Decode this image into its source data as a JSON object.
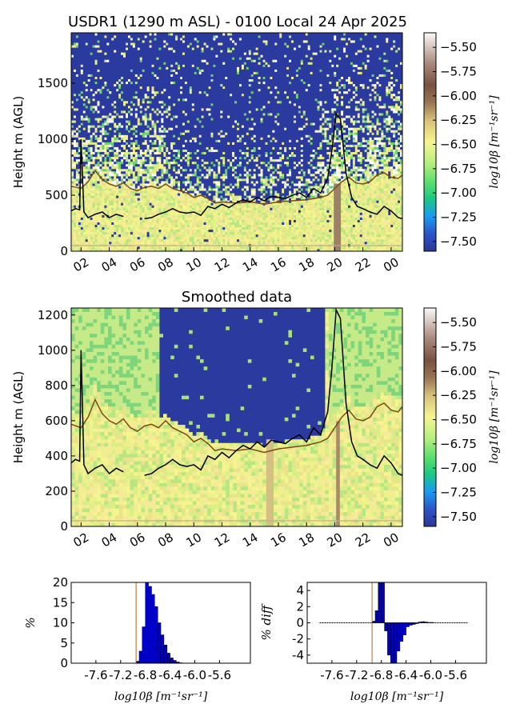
{
  "figure_title": "USDR1 (1290 m ASL) - 0100 Local 24 Apr 2025",
  "colors": {
    "low": "#2b3a9e",
    "mid": "#f3f18c",
    "high": "#ffffff",
    "blh_line": "#000000",
    "cloud_line": "#7a4a14",
    "hist_bar": "#0000c8"
  },
  "chart_data": [
    {
      "type": "heatmap",
      "title": "",
      "ylabel": "Height m (AGL)",
      "xticks": [
        "02",
        "04",
        "06",
        "08",
        "10",
        "12",
        "14",
        "16",
        "18",
        "20",
        "22",
        "00"
      ],
      "xlim": [
        1.3,
        24.8
      ],
      "ylim": [
        0,
        1950
      ],
      "yticks": [
        0,
        500,
        1000,
        1500
      ],
      "colorbar": {
        "label": "log10β [m⁻¹sr⁻¹]",
        "min": -7.6,
        "max": -5.35,
        "ticks": [
          "-5.50",
          "-5.75",
          "-6.00",
          "-6.25",
          "-6.50",
          "-6.75",
          "-7.00",
          "-7.25",
          "-7.50"
        ]
      },
      "mixing_layer_height": {
        "x": [
          1.3,
          1.6,
          1.9,
          2.0,
          2.2,
          2.5,
          3.0,
          3.5,
          4.0,
          4.5,
          5.0,
          5.5,
          6.0,
          6.5,
          7.0,
          7.5,
          8.0,
          8.5,
          9.0,
          9.5,
          10.0,
          10.5,
          11.0,
          11.5,
          12.0,
          12.5,
          13.0,
          13.5,
          14.0,
          14.5,
          15.0,
          15.5,
          16.0,
          16.5,
          17.0,
          17.5,
          18.0,
          18.5,
          19.0,
          19.5,
          19.8,
          20.1,
          20.4,
          20.8,
          21.2,
          21.6,
          22.0,
          22.5,
          23.0,
          23.5,
          24.0,
          24.5,
          24.8
        ],
        "y": [
          360,
          380,
          370,
          1000,
          350,
          300,
          330,
          350,
          300,
          330,
          310,
          null,
          null,
          290,
          300,
          330,
          350,
          380,
          350,
          340,
          350,
          320,
          400,
          380,
          420,
          390,
          430,
          460,
          440,
          480,
          450,
          490,
          480,
          470,
          500,
          520,
          480,
          560,
          520,
          650,
          900,
          1230,
          1180,
          700,
          480,
          400,
          380,
          350,
          330,
          400,
          360,
          300,
          290
        ]
      },
      "cloud_base": {
        "x": [
          1.3,
          2.0,
          2.5,
          3.0,
          3.5,
          4.0,
          4.5,
          5.0,
          5.5,
          6.0,
          6.5,
          7.0,
          7.5,
          8.0,
          8.5,
          9.0,
          9.5,
          10.0,
          10.5,
          11.0,
          11.5,
          12.0,
          13.0,
          14.0,
          15.0,
          16.0,
          17.0,
          18.0,
          18.5,
          19.0,
          19.5,
          20.0,
          20.5,
          21.0,
          21.5,
          22.0,
          22.5,
          23.0,
          23.5,
          24.0,
          24.5,
          24.8
        ],
        "y": [
          580,
          560,
          620,
          720,
          640,
          600,
          580,
          610,
          560,
          540,
          570,
          580,
          560,
          600,
          560,
          540,
          520,
          480,
          500,
          470,
          430,
          440,
          430,
          440,
          420,
          440,
          450,
          460,
          470,
          480,
          500,
          560,
          620,
          660,
          610,
          600,
          620,
          680,
          700,
          660,
          650,
          680
        ]
      }
    },
    {
      "type": "heatmap",
      "title": "Smoothed data",
      "ylabel": "Height m (AGL)",
      "xticks": [
        "02",
        "04",
        "06",
        "08",
        "10",
        "12",
        "14",
        "16",
        "18",
        "20",
        "22",
        "00"
      ],
      "xlim": [
        1.3,
        24.8
      ],
      "ylim": [
        0,
        1240
      ],
      "yticks": [
        0,
        200,
        400,
        600,
        800,
        1000,
        1200
      ],
      "colorbar": {
        "label": "log10β [m⁻¹sr⁻¹]",
        "min": -7.6,
        "max": -5.35,
        "ticks": [
          "-5.50",
          "-5.75",
          "-6.00",
          "-6.25",
          "-6.50",
          "-6.75",
          "-7.00",
          "-7.25",
          "-7.50"
        ]
      }
    },
    {
      "type": "bar",
      "ylabel": "%",
      "xlabel": "log10β [m⁻¹sr⁻¹]",
      "xlim": [
        -8.0,
        -5.1
      ],
      "ylim": [
        0,
        20
      ],
      "yticks": [
        0,
        5,
        10,
        15,
        20
      ],
      "xticks": [
        "-7.6",
        "-7.2",
        "-6.8",
        "-6.4",
        "-6.0",
        "-5.6"
      ],
      "marker_x": -6.95,
      "bin_width": 0.05,
      "bins": [
        -6.95,
        -6.9,
        -6.85,
        -6.8,
        -6.75,
        -6.7,
        -6.65,
        -6.6,
        -6.55,
        -6.5,
        -6.45,
        -6.4,
        -6.35,
        -6.3,
        -6.25
      ],
      "values": [
        0.5,
        3,
        9,
        20,
        19,
        17,
        14,
        10,
        7,
        4.5,
        2.5,
        1.3,
        0.7,
        0.3,
        0.1
      ]
    },
    {
      "type": "bar",
      "ylabel": "% diff",
      "xlabel": "log10β [m⁻¹sr⁻¹]",
      "xlim": [
        -8.0,
        -5.1
      ],
      "ylim": [
        -5,
        5
      ],
      "yticks": [
        -4,
        -2,
        0,
        2,
        4
      ],
      "xticks": [
        "-7.6",
        "-7.2",
        "-6.8",
        "-6.4",
        "-6.0",
        "-5.6"
      ],
      "marker_x": -6.95,
      "bin_width": 0.05,
      "bins": [
        -6.95,
        -6.9,
        -6.85,
        -6.8,
        -6.75,
        -6.7,
        -6.65,
        -6.6,
        -6.55,
        -6.5,
        -6.45,
        -6.4,
        -6.35,
        -6.3,
        -6.25,
        -6.2,
        -6.15,
        -6.1,
        -6.05,
        -6.0
      ],
      "values": [
        0.2,
        1.5,
        5,
        5,
        -1,
        -4,
        -5,
        -5,
        -3.5,
        -2.3,
        -1.5,
        -0.5,
        -0.3,
        -0.2,
        -0.1,
        0.1,
        0.15,
        0.1,
        0.05,
        0.05
      ],
      "baseline_x": [
        -7.8,
        -5.4
      ]
    }
  ]
}
